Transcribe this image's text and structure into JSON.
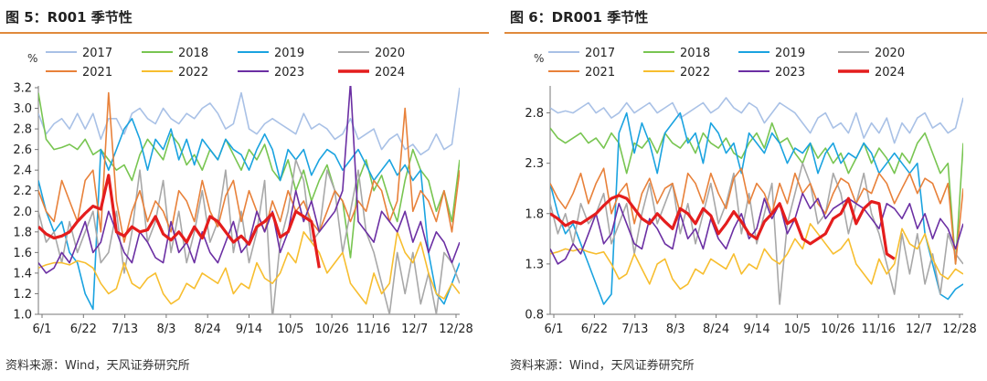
{
  "panels": [
    {
      "title": "图 5：R001 季节性",
      "source": "资料来源：Wind，天风证券研究所"
    },
    {
      "title": "图 6：DR001 季节性",
      "source": "资料来源：Wind，天风证券研究所"
    }
  ],
  "chart_data": [
    {
      "type": "line",
      "title": "R001 季节性",
      "unit_label": "%",
      "x_ticks": [
        "6/1",
        "6/22",
        "7/13",
        "8/3",
        "8/24",
        "9/14",
        "10/5",
        "10/26",
        "11/16",
        "12/7",
        "12/28"
      ],
      "y_ticks": [
        "1.0",
        "1.2",
        "1.4",
        "1.6",
        "1.8",
        "2.0",
        "2.2",
        "2.4",
        "2.6",
        "2.8",
        "3.0",
        "3.2"
      ],
      "ylim": [
        1.0,
        3.2
      ],
      "grid": false,
      "legend_position": "top",
      "series": [
        {
          "name": "2017",
          "color": "#a9c1e6",
          "width": 1.6,
          "values": [
            2.95,
            2.75,
            2.85,
            2.9,
            2.8,
            2.95,
            2.8,
            2.95,
            2.7,
            2.9,
            2.9,
            2.75,
            2.95,
            3.0,
            2.9,
            2.85,
            3.0,
            2.9,
            2.85,
            2.95,
            2.9,
            3.0,
            3.05,
            2.95,
            2.8,
            2.85,
            3.15,
            2.8,
            2.75,
            2.85,
            2.9,
            2.85,
            2.8,
            2.75,
            2.95,
            2.8,
            2.85,
            2.8,
            2.7,
            2.75,
            2.9,
            2.7,
            2.75,
            2.8,
            2.6,
            2.7,
            2.75,
            2.6,
            2.65,
            2.55,
            2.6,
            2.75,
            2.6,
            2.65,
            3.2
          ]
        },
        {
          "name": "2018",
          "color": "#78c551",
          "width": 1.6,
          "values": [
            3.15,
            2.7,
            2.6,
            2.62,
            2.65,
            2.6,
            2.7,
            2.55,
            2.6,
            2.5,
            2.4,
            2.45,
            2.3,
            2.55,
            2.7,
            2.6,
            2.5,
            2.75,
            2.65,
            2.45,
            2.55,
            2.4,
            2.6,
            2.5,
            2.7,
            2.55,
            2.4,
            2.6,
            2.5,
            2.65,
            2.4,
            2.3,
            2.5,
            2.2,
            2.4,
            2.1,
            2.3,
            2.45,
            2.2,
            2.1,
            1.55,
            2.3,
            2.5,
            2.2,
            2.35,
            2.1,
            1.9,
            2.3,
            2.6,
            2.4,
            2.3,
            2.0,
            2.2,
            1.9,
            2.5
          ]
        },
        {
          "name": "2019",
          "color": "#1aa3e0",
          "width": 1.6,
          "values": [
            2.3,
            2.0,
            1.8,
            1.9,
            1.6,
            1.5,
            1.2,
            1.05,
            2.6,
            2.4,
            2.6,
            2.8,
            2.9,
            2.7,
            2.4,
            2.7,
            2.6,
            2.8,
            2.5,
            2.7,
            2.45,
            2.7,
            2.6,
            2.5,
            2.7,
            2.6,
            2.55,
            2.4,
            2.6,
            2.75,
            2.6,
            2.3,
            2.6,
            2.5,
            2.6,
            2.35,
            2.5,
            2.6,
            2.55,
            2.4,
            2.5,
            2.6,
            2.45,
            2.3,
            2.4,
            2.5,
            2.35,
            2.45,
            2.3,
            2.4,
            1.6,
            1.2,
            1.1,
            1.3,
            1.5
          ]
        },
        {
          "name": "2020",
          "color": "#a8a8a8",
          "width": 1.6,
          "values": [
            2.0,
            1.7,
            1.8,
            1.5,
            1.9,
            1.6,
            1.8,
            2.0,
            1.5,
            1.6,
            2.0,
            1.4,
            1.8,
            2.4,
            1.7,
            1.9,
            2.3,
            1.6,
            2.0,
            1.5,
            1.8,
            2.2,
            1.7,
            1.9,
            2.4,
            1.6,
            2.0,
            1.5,
            1.8,
            2.3,
            0.95,
            1.7,
            2.0,
            2.5,
            2.3,
            1.7,
            1.8,
            2.4,
            2.2,
            1.6,
            2.0,
            2.4,
            1.8,
            1.6,
            1.3,
            1.0,
            1.6,
            1.2,
            1.6,
            1.1,
            1.4,
            1.0,
            1.6,
            1.5,
            1.3
          ]
        },
        {
          "name": "2021",
          "color": "#e8813a",
          "width": 1.6,
          "values": [
            2.2,
            2.0,
            1.9,
            2.3,
            2.1,
            1.9,
            2.3,
            2.4,
            1.8,
            3.15,
            2.1,
            1.7,
            2.0,
            2.2,
            1.9,
            2.1,
            2.0,
            1.8,
            2.2,
            2.1,
            1.9,
            2.3,
            2.0,
            1.85,
            2.15,
            2.3,
            1.9,
            2.2,
            2.0,
            1.8,
            2.1,
            1.9,
            2.2,
            2.0,
            2.1,
            1.9,
            1.8,
            2.0,
            2.2,
            2.1,
            1.9,
            2.1,
            2.0,
            2.3,
            2.2,
            1.9,
            2.1,
            3.0,
            2.0,
            2.2,
            2.1,
            1.9,
            2.2,
            1.8,
            2.4
          ]
        },
        {
          "name": "2022",
          "color": "#f7be2f",
          "width": 1.6,
          "values": [
            1.45,
            1.48,
            1.5,
            1.5,
            1.48,
            1.52,
            1.5,
            1.45,
            1.3,
            1.2,
            1.25,
            1.5,
            1.3,
            1.25,
            1.35,
            1.4,
            1.2,
            1.1,
            1.15,
            1.3,
            1.25,
            1.4,
            1.35,
            1.3,
            1.45,
            1.2,
            1.3,
            1.25,
            1.5,
            1.35,
            1.3,
            1.4,
            1.6,
            1.5,
            1.8,
            1.7,
            1.6,
            1.4,
            1.5,
            1.6,
            1.3,
            1.2,
            1.1,
            1.4,
            1.2,
            1.3,
            1.8,
            1.6,
            1.5,
            1.7,
            1.4,
            1.2,
            1.15,
            1.3,
            1.2
          ]
        },
        {
          "name": "2023",
          "color": "#6b2fa3",
          "width": 1.6,
          "values": [
            1.5,
            1.4,
            1.45,
            1.6,
            1.5,
            1.7,
            1.9,
            1.6,
            1.7,
            2.0,
            1.8,
            1.6,
            1.5,
            1.8,
            1.7,
            1.55,
            1.5,
            1.9,
            1.6,
            1.7,
            1.5,
            1.8,
            1.6,
            1.5,
            1.7,
            1.9,
            1.6,
            1.7,
            2.0,
            1.8,
            2.0,
            1.6,
            1.8,
            2.2,
            1.9,
            2.1,
            1.8,
            1.9,
            2.0,
            2.2,
            3.25,
            1.9,
            1.8,
            1.7,
            2.0,
            1.9,
            1.8,
            2.0,
            1.7,
            1.9,
            1.6,
            1.8,
            1.7,
            1.5,
            1.7
          ]
        },
        {
          "name": "2024",
          "color": "#e41d1d",
          "width": 3.2,
          "values": [
            1.85,
            1.78,
            1.74,
            1.76,
            1.8,
            1.9,
            1.98,
            2.05,
            2.02,
            2.35,
            1.8,
            1.76,
            1.85,
            1.8,
            1.82,
            1.95,
            1.78,
            1.72,
            1.8,
            1.7,
            1.85,
            1.74,
            1.95,
            1.9,
            1.8,
            1.7,
            1.76,
            1.68,
            1.85,
            1.9,
            1.98,
            1.75,
            1.8,
            2.0,
            1.95,
            1.9,
            1.45
          ]
        }
      ]
    },
    {
      "type": "line",
      "title": "DR001 季节性",
      "unit_label": "%",
      "x_ticks": [
        "6/1",
        "6/22",
        "7/13",
        "8/3",
        "8/24",
        "9/14",
        "10/5",
        "10/26",
        "11/16",
        "12/7",
        "12/28"
      ],
      "y_ticks": [
        "0.8",
        "1.3",
        "1.8",
        "2.3",
        "2.8"
      ],
      "ylim": [
        0.8,
        3.05
      ],
      "grid": false,
      "legend_position": "top",
      "series": [
        {
          "name": "2017",
          "color": "#a9c1e6",
          "width": 1.6,
          "values": [
            2.85,
            2.8,
            2.82,
            2.8,
            2.85,
            2.9,
            2.8,
            2.85,
            2.75,
            2.8,
            2.9,
            2.8,
            2.85,
            2.9,
            2.8,
            2.85,
            2.9,
            2.75,
            2.8,
            2.85,
            2.9,
            2.8,
            2.85,
            2.95,
            2.85,
            2.8,
            2.9,
            2.85,
            2.7,
            2.8,
            2.9,
            2.85,
            2.8,
            2.7,
            2.6,
            2.75,
            2.8,
            2.65,
            2.7,
            2.6,
            2.8,
            2.55,
            2.7,
            2.6,
            2.75,
            2.5,
            2.7,
            2.6,
            2.75,
            2.8,
            2.65,
            2.7,
            2.6,
            2.65,
            2.95
          ]
        },
        {
          "name": "2018",
          "color": "#78c551",
          "width": 1.6,
          "values": [
            2.65,
            2.55,
            2.5,
            2.55,
            2.6,
            2.5,
            2.55,
            2.45,
            2.6,
            2.5,
            2.2,
            2.5,
            2.45,
            2.55,
            2.4,
            2.6,
            2.5,
            2.45,
            2.55,
            2.4,
            2.6,
            2.5,
            2.45,
            2.55,
            2.4,
            2.35,
            2.5,
            2.6,
            2.45,
            2.7,
            2.5,
            2.55,
            2.4,
            2.3,
            2.5,
            2.35,
            2.45,
            2.3,
            2.4,
            2.2,
            2.35,
            2.5,
            2.3,
            2.45,
            2.35,
            2.2,
            2.4,
            2.3,
            2.5,
            2.6,
            2.4,
            2.2,
            2.3,
            1.3,
            2.5
          ]
        },
        {
          "name": "2019",
          "color": "#1aa3e0",
          "width": 1.6,
          "values": [
            2.1,
            1.8,
            1.6,
            1.7,
            1.5,
            1.3,
            1.1,
            0.9,
            1.0,
            2.6,
            2.8,
            2.4,
            2.7,
            2.5,
            2.2,
            2.6,
            2.7,
            2.8,
            2.5,
            2.6,
            2.3,
            2.7,
            2.6,
            2.4,
            2.5,
            2.2,
            2.6,
            2.5,
            2.4,
            2.6,
            2.5,
            2.3,
            2.45,
            2.4,
            2.5,
            2.2,
            2.4,
            2.5,
            2.3,
            2.4,
            2.35,
            2.5,
            2.4,
            2.2,
            2.3,
            2.4,
            2.3,
            2.2,
            2.3,
            1.6,
            1.3,
            1.0,
            0.95,
            1.05,
            1.1
          ]
        },
        {
          "name": "2020",
          "color": "#a8a8a8",
          "width": 1.6,
          "values": [
            1.9,
            1.6,
            1.8,
            1.5,
            1.9,
            1.7,
            1.8,
            2.0,
            1.5,
            1.7,
            1.9,
            1.4,
            1.8,
            2.1,
            1.7,
            1.9,
            2.1,
            1.6,
            1.9,
            1.5,
            1.8,
            2.1,
            1.7,
            1.9,
            2.2,
            1.6,
            2.0,
            1.5,
            1.8,
            2.1,
            0.9,
            1.7,
            2.0,
            2.3,
            2.1,
            1.7,
            1.8,
            2.2,
            2.0,
            1.6,
            1.9,
            2.2,
            1.8,
            1.6,
            1.3,
            1.0,
            1.6,
            1.2,
            1.6,
            1.1,
            1.4,
            1.0,
            1.6,
            1.4,
            1.3
          ]
        },
        {
          "name": "2021",
          "color": "#e8813a",
          "width": 1.6,
          "values": [
            2.1,
            1.95,
            1.85,
            2.0,
            2.2,
            1.9,
            2.1,
            2.25,
            1.8,
            2.0,
            2.1,
            1.7,
            2.0,
            2.15,
            1.9,
            2.05,
            2.1,
            1.8,
            2.2,
            2.1,
            1.9,
            2.2,
            2.0,
            1.85,
            2.15,
            2.25,
            1.9,
            2.1,
            2.0,
            1.8,
            2.1,
            1.9,
            2.2,
            2.0,
            2.1,
            1.9,
            1.8,
            2.0,
            2.15,
            2.1,
            1.9,
            2.05,
            2.0,
            2.2,
            2.1,
            1.9,
            2.05,
            2.2,
            2.0,
            2.15,
            2.1,
            1.9,
            2.1,
            1.3,
            2.05
          ]
        },
        {
          "name": "2022",
          "color": "#f7be2f",
          "width": 1.6,
          "values": [
            1.4,
            1.42,
            1.45,
            1.43,
            1.45,
            1.42,
            1.4,
            1.42,
            1.3,
            1.15,
            1.2,
            1.4,
            1.25,
            1.1,
            1.3,
            1.35,
            1.15,
            1.05,
            1.1,
            1.25,
            1.2,
            1.35,
            1.3,
            1.25,
            1.4,
            1.2,
            1.3,
            1.25,
            1.45,
            1.35,
            1.3,
            1.4,
            1.55,
            1.45,
            1.7,
            1.6,
            1.5,
            1.4,
            1.45,
            1.55,
            1.3,
            1.2,
            1.1,
            1.35,
            1.2,
            1.3,
            1.65,
            1.5,
            1.45,
            1.6,
            1.35,
            1.2,
            1.15,
            1.25,
            1.2
          ]
        },
        {
          "name": "2023",
          "color": "#6b2fa3",
          "width": 1.6,
          "values": [
            1.45,
            1.3,
            1.35,
            1.5,
            1.4,
            1.6,
            1.8,
            1.5,
            1.6,
            1.9,
            1.7,
            1.5,
            1.45,
            1.75,
            1.65,
            1.5,
            1.45,
            1.8,
            1.55,
            1.65,
            1.45,
            1.75,
            1.55,
            1.45,
            1.65,
            1.8,
            1.55,
            1.65,
            1.95,
            1.75,
            1.9,
            1.6,
            1.75,
            2.0,
            1.85,
            1.95,
            1.75,
            1.85,
            1.9,
            1.95,
            1.9,
            1.85,
            1.75,
            1.65,
            1.9,
            1.85,
            1.75,
            1.9,
            1.65,
            1.8,
            1.55,
            1.75,
            1.65,
            1.45,
            1.7
          ]
        },
        {
          "name": "2024",
          "color": "#e41d1d",
          "width": 3.2,
          "values": [
            1.8,
            1.75,
            1.68,
            1.72,
            1.7,
            1.75,
            1.8,
            1.88,
            1.95,
            1.98,
            1.95,
            1.85,
            1.75,
            1.7,
            1.8,
            1.72,
            1.65,
            1.85,
            1.8,
            1.7,
            1.85,
            1.78,
            1.6,
            1.7,
            1.82,
            1.72,
            1.6,
            1.55,
            1.72,
            1.8,
            1.9,
            1.7,
            1.75,
            1.55,
            1.5,
            1.55,
            1.6,
            1.75,
            1.8,
            1.95,
            1.7,
            1.85,
            1.92,
            1.9,
            1.4,
            1.35
          ]
        }
      ]
    }
  ]
}
